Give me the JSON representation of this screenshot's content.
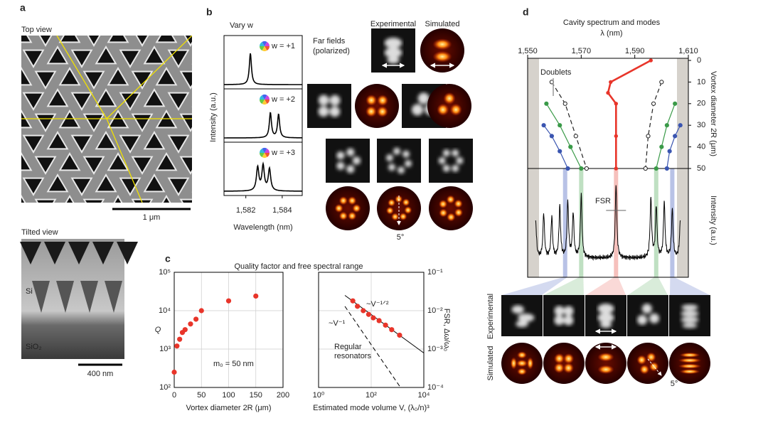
{
  "panel_a": {
    "label": "a",
    "top_view": "Top view",
    "scale_top": "1 μm",
    "tilted_view": "Tilted view",
    "si": "Si",
    "sio2": "SiO₂",
    "scale_bottom": "400 nm"
  },
  "panel_b": {
    "label": "b",
    "title": "Vary w",
    "ylabel": "Intensity (a.u.)",
    "xlabel": "Wavelength (nm)",
    "xlim": [
      1580.8,
      1585.1
    ],
    "xticks": [
      {
        "value": 1582,
        "label": "1,582"
      },
      {
        "value": 1584,
        "label": "1,584"
      }
    ],
    "spectra": [
      {
        "name": "w = +1",
        "peaks": [
          1582.25
        ],
        "heights": [
          1
        ],
        "width": 0.07
      },
      {
        "name": "w = +2",
        "peaks": [
          1583.35,
          1583.8
        ],
        "heights": [
          0.8,
          0.75
        ],
        "width": 0.07
      },
      {
        "name": "w = +3",
        "peaks": [
          1582.65,
          1582.95,
          1583.3
        ],
        "heights": [
          0.75,
          0.8,
          0.7
        ],
        "width": 0.08
      }
    ],
    "far_fields_1": "Far fields",
    "far_fields_2": "(polarized)",
    "experimental": "Experimental",
    "simulated": "Simulated",
    "angle": "5°"
  },
  "panel_c": {
    "label": "c",
    "title": "Quality factor and free spectral range",
    "charts": [
      {
        "type": "scatter",
        "xlabel": "Vortex diameter 2R (μm)",
        "ylabel": "Q",
        "annotation": "m₀ = 50 nm",
        "color": "#e8352a",
        "xlim": [
          0,
          200
        ],
        "xticks": [
          0,
          50,
          100,
          150,
          200
        ],
        "ylog": true,
        "grid": true,
        "ylim": [
          100,
          100000
        ],
        "yticks": [
          {
            "value": 100,
            "label": "10²"
          },
          {
            "value": 1000,
            "label": "10³"
          },
          {
            "value": 10000,
            "label": "10⁴"
          },
          {
            "value": 100000,
            "label": "10⁵"
          }
        ],
        "x": [
          0,
          5,
          10,
          15,
          20,
          30,
          40,
          50,
          100,
          150
        ],
        "values": [
          250,
          1200,
          1800,
          2700,
          3200,
          4500,
          6000,
          10000,
          18000,
          24000
        ]
      },
      {
        "type": "scatter",
        "xlabel": "Estimated mode volume V, (λ₀/n)³",
        "ylabel": "FSR, Δω/ω₀",
        "color": "#e8352a",
        "xlog": true,
        "ylog": true,
        "grid": true,
        "xlim": [
          1,
          10000
        ],
        "xticks": [
          {
            "value": 1,
            "label": "10⁰"
          },
          {
            "value": 100,
            "label": "10²"
          },
          {
            "value": 10000,
            "label": "10⁴"
          }
        ],
        "ylim": [
          0.0001,
          0.1
        ],
        "yticks": [
          {
            "value": 0.0001,
            "label": "10⁻⁴"
          },
          {
            "value": 0.001,
            "label": "10⁻³"
          },
          {
            "value": 0.01,
            "label": "10⁻²"
          },
          {
            "value": 0.1,
            "label": "10⁻¹"
          }
        ],
        "x": [
          20,
          30,
          50,
          80,
          120,
          200,
          350,
          600,
          1200
        ],
        "values": [
          0.018,
          0.013,
          0.01,
          0.008,
          0.0065,
          0.0055,
          0.0042,
          0.0032,
          0.0023
        ],
        "guides": [
          {
            "x": [
              10,
              10000
            ],
            "y": [
              0.025,
              0.00079
            ],
            "dash": false
          },
          {
            "x": [
              10,
              1300
            ],
            "y": [
              0.013,
              0.0001
            ],
            "dash": true
          }
        ],
        "annotation_1": "~V⁻¹ᐟ²",
        "annotation_2": "~V⁻¹",
        "annotation_3": "Regular",
        "annotation_4": "resonators"
      }
    ]
  },
  "panel_d": {
    "label": "d",
    "type": "line",
    "title": "Cavity spectrum and modes",
    "xlabel": "λ (nm)",
    "ylabel": "Vortex diameter 2R (μm)",
    "y2label": "Intensity (a.u.)",
    "xlim": [
      1550,
      1610
    ],
    "xticks": [
      {
        "value": 1550,
        "label": "1,550"
      },
      {
        "value": 1570,
        "label": "1,570"
      },
      {
        "value": 1590,
        "label": "1,590"
      },
      {
        "value": 1610,
        "label": "1,610"
      }
    ],
    "ylim": [
      0,
      50
    ],
    "yticks": [
      0,
      10,
      20,
      30,
      40,
      50
    ],
    "series": [
      {
        "color": "#e8352a",
        "x": [
          1596,
          1581,
          1580,
          1583,
          1583,
          1583
        ],
        "y": [
          0,
          10,
          15,
          20,
          35,
          50
        ]
      },
      {
        "color": "#222222",
        "x": [
          1559,
          1564,
          1568,
          1572
        ],
        "y": [
          10,
          20,
          35,
          50
        ]
      },
      {
        "color": "#3a9a48",
        "x": [
          1557,
          1562,
          1566,
          1570
        ],
        "y": [
          20,
          30,
          40,
          50
        ]
      },
      {
        "color": "#3a55b0",
        "x": [
          1556,
          1559,
          1562,
          1565
        ],
        "y": [
          30,
          35,
          42,
          50
        ]
      },
      {
        "color": "#222222",
        "x": [
          1600,
          1597,
          1595,
          1594
        ],
        "y": [
          10,
          20,
          35,
          50
        ]
      },
      {
        "color": "#3a9a48",
        "x": [
          1605,
          1602,
          1600,
          1598
        ],
        "y": [
          20,
          30,
          40,
          50
        ]
      },
      {
        "color": "#3a55b0",
        "x": [
          1607,
          1605,
          1603,
          1602
        ],
        "y": [
          30,
          35,
          42,
          50
        ]
      }
    ],
    "spectrum_peaks": [
      1553,
      1556,
      1559,
      1562,
      1565,
      1567,
      1570,
      1583,
      1596,
      1598,
      1601,
      1604,
      1607
    ],
    "spectrum_heights": [
      0.5,
      0.6,
      0.55,
      0.7,
      0.75,
      0.6,
      0.85,
      1,
      0.8,
      0.7,
      0.75,
      0.65,
      0.5
    ],
    "doublets": "Doublets",
    "fsr": "FSR",
    "experimental": "Experimental",
    "simulated": "Simulated",
    "angle": "5°"
  }
}
